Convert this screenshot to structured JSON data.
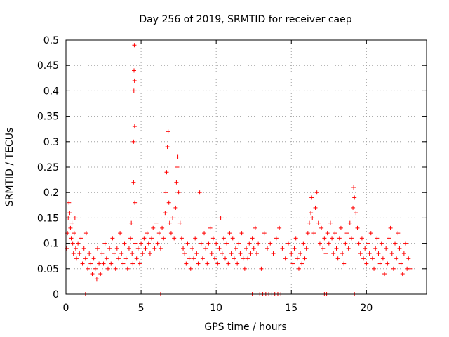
{
  "chart_data": {
    "type": "scatter",
    "title": "Day 256 of 2019, SRMTID for receiver caep",
    "xlabel": "GPS time / hours",
    "ylabel": "SRMTID / TECUs",
    "xlim": [
      0,
      24
    ],
    "ylim": [
      0,
      0.5
    ],
    "xticks": [
      0,
      5,
      10,
      15,
      20
    ],
    "xtick_labels": [
      "0",
      "5",
      "10",
      "15",
      "20"
    ],
    "yticks": [
      0,
      0.05,
      0.1,
      0.15,
      0.2,
      0.25,
      0.3,
      0.35,
      0.4,
      0.45,
      0.5
    ],
    "ytick_labels": [
      "0",
      "0.05",
      "0.1",
      "0.15",
      "0.2",
      "0.25",
      "0.3",
      "0.35",
      "0.4",
      "0.45",
      "0.5"
    ],
    "grid": true,
    "marker": "+",
    "color": "#ff0000",
    "series": [
      {
        "name": "SRMTID",
        "points": [
          [
            0.05,
            0.09
          ],
          [
            0.1,
            0.12
          ],
          [
            0.15,
            0.15
          ],
          [
            0.2,
            0.18
          ],
          [
            0.25,
            0.16
          ],
          [
            0.3,
            0.13
          ],
          [
            0.35,
            0.11
          ],
          [
            0.4,
            0.14
          ],
          [
            0.45,
            0.1
          ],
          [
            0.5,
            0.08
          ],
          [
            0.55,
            0.12
          ],
          [
            0.6,
            0.15
          ],
          [
            0.65,
            0.09
          ],
          [
            0.7,
            0.07
          ],
          [
            0.8,
            0.1
          ],
          [
            0.9,
            0.08
          ],
          [
            1.0,
            0.11
          ],
          [
            1.1,
            0.06
          ],
          [
            1.2,
            0.09
          ],
          [
            1.3,
            0.07
          ],
          [
            1.35,
            0.12
          ],
          [
            1.45,
            0.05
          ],
          [
            1.55,
            0.08
          ],
          [
            1.65,
            0.06
          ],
          [
            1.75,
            0.04
          ],
          [
            1.85,
            0.07
          ],
          [
            1.95,
            0.05
          ],
          [
            2.05,
            0.03
          ],
          [
            2.1,
            0.09
          ],
          [
            2.2,
            0.06
          ],
          [
            2.3,
            0.04
          ],
          [
            2.4,
            0.08
          ],
          [
            2.5,
            0.06
          ],
          [
            2.6,
            0.1
          ],
          [
            2.7,
            0.07
          ],
          [
            2.8,
            0.05
          ],
          [
            2.9,
            0.09
          ],
          [
            3.0,
            0.06
          ],
          [
            3.1,
            0.11
          ],
          [
            3.2,
            0.08
          ],
          [
            3.3,
            0.05
          ],
          [
            3.4,
            0.09
          ],
          [
            3.5,
            0.07
          ],
          [
            3.6,
            0.12
          ],
          [
            3.7,
            0.08
          ],
          [
            3.8,
            0.06
          ],
          [
            3.9,
            0.1
          ],
          [
            4.0,
            0.07
          ],
          [
            4.1,
            0.05
          ],
          [
            4.2,
            0.09
          ],
          [
            4.3,
            0.11
          ],
          [
            4.35,
            0.14
          ],
          [
            4.4,
            0.08
          ],
          [
            4.45,
            0.06
          ],
          [
            4.5,
            0.22
          ],
          [
            4.5,
            0.3
          ],
          [
            4.52,
            0.4
          ],
          [
            4.53,
            0.44
          ],
          [
            4.55,
            0.49
          ],
          [
            4.56,
            0.42
          ],
          [
            4.57,
            0.33
          ],
          [
            4.58,
            0.18
          ],
          [
            4.6,
            0.1
          ],
          [
            4.7,
            0.07
          ],
          [
            4.8,
            0.09
          ],
          [
            4.9,
            0.06
          ],
          [
            5.0,
            0.1
          ],
          [
            5.1,
            0.08
          ],
          [
            5.2,
            0.11
          ],
          [
            5.3,
            0.09
          ],
          [
            5.4,
            0.12
          ],
          [
            5.5,
            0.1
          ],
          [
            5.6,
            0.08
          ],
          [
            5.7,
            0.11
          ],
          [
            5.8,
            0.13
          ],
          [
            5.9,
            0.09
          ],
          [
            6.0,
            0.14
          ],
          [
            6.1,
            0.1
          ],
          [
            6.2,
            0.12
          ],
          [
            6.3,
            0.09
          ],
          [
            6.4,
            0.13
          ],
          [
            6.5,
            0.11
          ],
          [
            6.6,
            0.16
          ],
          [
            6.65,
            0.2
          ],
          [
            6.7,
            0.24
          ],
          [
            6.75,
            0.29
          ],
          [
            6.8,
            0.32
          ],
          [
            6.85,
            0.18
          ],
          [
            6.9,
            0.14
          ],
          [
            7.0,
            0.12
          ],
          [
            7.1,
            0.15
          ],
          [
            7.2,
            0.11
          ],
          [
            7.3,
            0.17
          ],
          [
            7.35,
            0.22
          ],
          [
            7.4,
            0.25
          ],
          [
            7.45,
            0.27
          ],
          [
            7.5,
            0.2
          ],
          [
            7.6,
            0.14
          ],
          [
            7.7,
            0.11
          ],
          [
            7.8,
            0.09
          ],
          [
            7.9,
            0.08
          ],
          [
            8.0,
            0.06
          ],
          [
            8.1,
            0.1
          ],
          [
            8.2,
            0.07
          ],
          [
            8.3,
            0.05
          ],
          [
            8.4,
            0.09
          ],
          [
            8.5,
            0.07
          ],
          [
            8.6,
            0.11
          ],
          [
            8.7,
            0.08
          ],
          [
            8.8,
            0.06
          ],
          [
            8.9,
            0.2
          ],
          [
            9.0,
            0.1
          ],
          [
            9.1,
            0.07
          ],
          [
            9.2,
            0.12
          ],
          [
            9.3,
            0.09
          ],
          [
            9.4,
            0.06
          ],
          [
            9.5,
            0.1
          ],
          [
            9.6,
            0.13
          ],
          [
            9.7,
            0.08
          ],
          [
            9.8,
            0.11
          ],
          [
            9.9,
            0.07
          ],
          [
            10.0,
            0.1
          ],
          [
            10.1,
            0.06
          ],
          [
            10.2,
            0.09
          ],
          [
            10.3,
            0.15
          ],
          [
            10.4,
            0.08
          ],
          [
            10.5,
            0.11
          ],
          [
            10.6,
            0.07
          ],
          [
            10.7,
            0.1
          ],
          [
            10.8,
            0.06
          ],
          [
            10.9,
            0.12
          ],
          [
            11.0,
            0.08
          ],
          [
            11.1,
            0.11
          ],
          [
            11.2,
            0.07
          ],
          [
            11.3,
            0.09
          ],
          [
            11.4,
            0.06
          ],
          [
            11.5,
            0.1
          ],
          [
            11.6,
            0.08
          ],
          [
            11.7,
            0.12
          ],
          [
            11.8,
            0.07
          ],
          [
            11.9,
            0.05
          ],
          [
            12.0,
            0.09
          ],
          [
            12.1,
            0.07
          ],
          [
            12.2,
            0.1
          ],
          [
            12.3,
            0.08
          ],
          [
            12.4,
            0.11
          ],
          [
            12.5,
            0.09
          ],
          [
            12.6,
            0.13
          ],
          [
            12.7,
            0.08
          ],
          [
            12.8,
            0.1
          ],
          [
            13.0,
            0.05
          ],
          [
            13.2,
            0.12
          ],
          [
            13.4,
            0.09
          ],
          [
            13.6,
            0.1
          ],
          [
            13.8,
            0.08
          ],
          [
            14.0,
            0.11
          ],
          [
            14.2,
            0.13
          ],
          [
            14.4,
            0.09
          ],
          [
            14.6,
            0.07
          ],
          [
            14.8,
            0.1
          ],
          [
            15.0,
            0.08
          ],
          [
            15.1,
            0.06
          ],
          [
            15.2,
            0.09
          ],
          [
            15.3,
            0.11
          ],
          [
            15.4,
            0.07
          ],
          [
            15.5,
            0.05
          ],
          [
            15.6,
            0.08
          ],
          [
            15.7,
            0.06
          ],
          [
            15.8,
            0.1
          ],
          [
            15.9,
            0.07
          ],
          [
            16.0,
            0.09
          ],
          [
            16.1,
            0.12
          ],
          [
            16.2,
            0.14
          ],
          [
            16.3,
            0.16
          ],
          [
            16.35,
            0.19
          ],
          [
            16.4,
            0.15
          ],
          [
            16.5,
            0.12
          ],
          [
            16.6,
            0.17
          ],
          [
            16.7,
            0.2
          ],
          [
            16.8,
            0.14
          ],
          [
            16.9,
            0.1
          ],
          [
            17.0,
            0.13
          ],
          [
            17.1,
            0.09
          ],
          [
            17.2,
            0.11
          ],
          [
            17.3,
            0.08
          ],
          [
            17.4,
            0.12
          ],
          [
            17.5,
            0.1
          ],
          [
            17.6,
            0.14
          ],
          [
            17.7,
            0.11
          ],
          [
            17.8,
            0.08
          ],
          [
            17.9,
            0.12
          ],
          [
            18.0,
            0.09
          ],
          [
            18.1,
            0.07
          ],
          [
            18.2,
            0.11
          ],
          [
            18.3,
            0.13
          ],
          [
            18.4,
            0.08
          ],
          [
            18.5,
            0.06
          ],
          [
            18.6,
            0.1
          ],
          [
            18.7,
            0.12
          ],
          [
            18.8,
            0.09
          ],
          [
            18.9,
            0.14
          ],
          [
            19.0,
            0.11
          ],
          [
            19.1,
            0.17
          ],
          [
            19.15,
            0.21
          ],
          [
            19.2,
            0.19
          ],
          [
            19.3,
            0.16
          ],
          [
            19.4,
            0.13
          ],
          [
            19.5,
            0.1
          ],
          [
            19.6,
            0.08
          ],
          [
            19.7,
            0.11
          ],
          [
            19.8,
            0.07
          ],
          [
            19.9,
            0.09
          ],
          [
            20.0,
            0.06
          ],
          [
            20.1,
            0.1
          ],
          [
            20.2,
            0.08
          ],
          [
            20.3,
            0.12
          ],
          [
            20.4,
            0.07
          ],
          [
            20.5,
            0.05
          ],
          [
            20.6,
            0.09
          ],
          [
            20.7,
            0.11
          ],
          [
            20.8,
            0.08
          ],
          [
            20.9,
            0.06
          ],
          [
            21.0,
            0.1
          ],
          [
            21.1,
            0.07
          ],
          [
            21.2,
            0.04
          ],
          [
            21.3,
            0.09
          ],
          [
            21.4,
            0.06
          ],
          [
            21.5,
            0.11
          ],
          [
            21.6,
            0.13
          ],
          [
            21.7,
            0.08
          ],
          [
            21.8,
            0.05
          ],
          [
            21.9,
            0.1
          ],
          [
            22.0,
            0.07
          ],
          [
            22.1,
            0.12
          ],
          [
            22.2,
            0.09
          ],
          [
            22.3,
            0.06
          ],
          [
            22.4,
            0.04
          ],
          [
            22.5,
            0.08
          ],
          [
            22.6,
            0.1
          ],
          [
            22.7,
            0.05
          ],
          [
            22.8,
            0.07
          ],
          [
            22.9,
            0.05
          ]
        ]
      }
    ],
    "zero_markers_x": [
      1.3,
      6.3,
      12.4,
      12.9,
      13.1,
      13.3,
      13.5,
      13.7,
      13.9,
      14.1,
      14.3,
      17.2,
      17.35,
      19.2
    ]
  }
}
